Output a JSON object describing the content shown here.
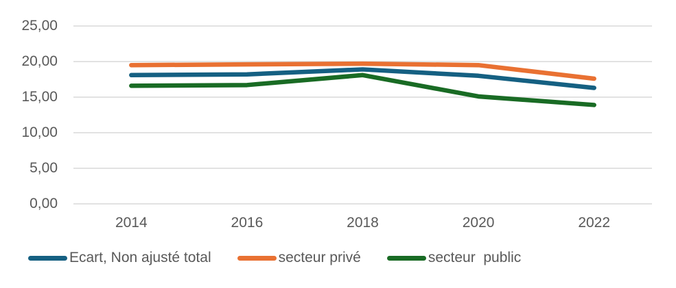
{
  "chart_data": {
    "type": "line",
    "x_labels": [
      "2014",
      "2016",
      "2018",
      "2020",
      "2022"
    ],
    "x_values": [
      2014,
      2016,
      2018,
      2020,
      2022
    ],
    "ylim": [
      0,
      25
    ],
    "grid": true,
    "legend_position": "bottom-left",
    "y_ticks": [
      {
        "value": 25,
        "label": "25,00"
      },
      {
        "value": 20,
        "label": "20,00"
      },
      {
        "value": 15,
        "label": "15,00"
      },
      {
        "value": 10,
        "label": "10,00"
      },
      {
        "value": 5,
        "label": "5,00"
      },
      {
        "value": 0,
        "label": "0,00"
      }
    ],
    "series": [
      {
        "name": "Ecart, Non ajusté total",
        "color": "#156082",
        "values": [
          18.1,
          18.2,
          18.9,
          18.0,
          16.3
        ]
      },
      {
        "name": "secteur privé",
        "color": "#E97132",
        "values": [
          19.5,
          19.6,
          19.7,
          19.5,
          17.6
        ]
      },
      {
        "name": "secteur  public",
        "color": "#196B24",
        "values": [
          16.6,
          16.7,
          18.1,
          15.1,
          13.9
        ]
      }
    ],
    "colors": {
      "grid": "#D9D9D9",
      "text": "#595959",
      "background": "#FFFFFF"
    }
  }
}
